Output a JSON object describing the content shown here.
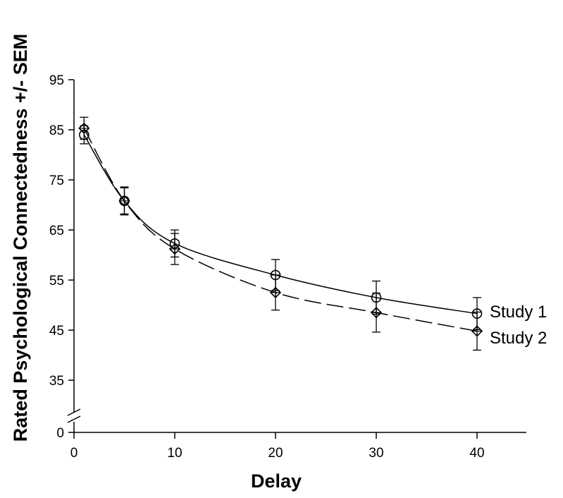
{
  "chart_data": {
    "type": "line",
    "xlabel": "Delay",
    "ylabel": "Rated Psychological Connectedness +/- SEM",
    "xlim": [
      0,
      45
    ],
    "x_ticks": [
      0,
      10,
      20,
      30,
      40
    ],
    "y_ticks": [
      35,
      45,
      55,
      65,
      75,
      85,
      95
    ],
    "y_axis_break": {
      "lower_label": "0",
      "upper_range": [
        30,
        95
      ]
    },
    "grid": false,
    "legend": "inline labels at line ends",
    "series": [
      {
        "name": "Study 1",
        "marker": "circle",
        "line_style": "solid",
        "x": [
          1,
          5,
          10,
          20,
          30,
          40
        ],
        "y": [
          84,
          70.8,
          62.3,
          56,
          51.5,
          48.3
        ],
        "error": [
          1.8,
          2.6,
          2.7,
          3.1,
          3.3,
          3.2
        ]
      },
      {
        "name": "Study 2",
        "marker": "diamond",
        "line_style": "dashed",
        "x": [
          1,
          5,
          10,
          20,
          30,
          40
        ],
        "y": [
          85.3,
          70.8,
          61.2,
          52.5,
          48.5,
          44.8
        ],
        "error": [
          2.2,
          2.8,
          3.1,
          3.5,
          3.9,
          3.8
        ]
      }
    ]
  }
}
